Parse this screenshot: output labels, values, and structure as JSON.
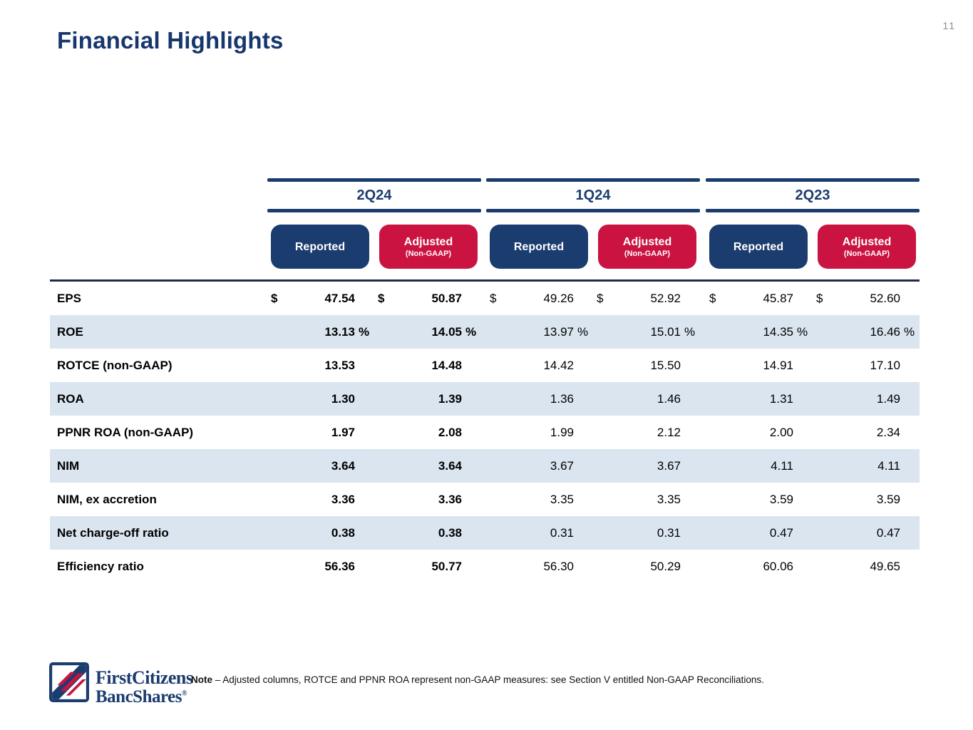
{
  "page": {
    "title": "Financial Highlights",
    "number": "11"
  },
  "colors": {
    "navy": "#1B3C6E",
    "red": "#CA1341",
    "stripe": "#DBE5F0",
    "table_rule": "#1F2A44",
    "title_navy": "#17366D"
  },
  "table": {
    "groups": [
      {
        "label": "2Q24",
        "columns": [
          {
            "label": "Reported",
            "sub": ""
          },
          {
            "label": "Adjusted",
            "sub": "(Non-GAAP)"
          }
        ]
      },
      {
        "label": "1Q24",
        "columns": [
          {
            "label": "Reported",
            "sub": ""
          },
          {
            "label": "Adjusted",
            "sub": "(Non-GAAP)"
          }
        ]
      },
      {
        "label": "2Q23",
        "columns": [
          {
            "label": "Reported",
            "sub": ""
          },
          {
            "label": "Adjusted",
            "sub": "(Non-GAAP)"
          }
        ]
      }
    ],
    "rows": [
      {
        "key": "eps",
        "label": "EPS",
        "dollar": "$",
        "pct": "",
        "values": [
          "47.54",
          "50.87",
          "49.26",
          "52.92",
          "45.87",
          "52.60"
        ]
      },
      {
        "key": "roe",
        "label": "ROE",
        "dollar": "",
        "pct": "%",
        "values": [
          "13.13",
          "14.05",
          "13.97",
          "15.01",
          "14.35",
          "16.46"
        ]
      },
      {
        "key": "rotce-non-gaap",
        "label": "ROTCE (non-GAAP)",
        "dollar": "",
        "pct": "",
        "values": [
          "13.53",
          "14.48",
          "14.42",
          "15.50",
          "14.91",
          "17.10"
        ]
      },
      {
        "key": "roa",
        "label": "ROA",
        "dollar": "",
        "pct": "",
        "values": [
          "1.30",
          "1.39",
          "1.36",
          "1.46",
          "1.31",
          "1.49"
        ]
      },
      {
        "key": "ppnr-roa-non-gaap",
        "label": "PPNR ROA (non-GAAP)",
        "dollar": "",
        "pct": "",
        "values": [
          "1.97",
          "2.08",
          "1.99",
          "2.12",
          "2.00",
          "2.34"
        ]
      },
      {
        "key": "nim",
        "label": "NIM",
        "dollar": "",
        "pct": "",
        "values": [
          "3.64",
          "3.64",
          "3.67",
          "3.67",
          "4.11",
          "4.11"
        ]
      },
      {
        "key": "nim-ex-accretion",
        "label": "NIM, ex accretion",
        "dollar": "",
        "pct": "",
        "values": [
          "3.36",
          "3.36",
          "3.35",
          "3.35",
          "3.59",
          "3.59"
        ]
      },
      {
        "key": "net-charge-off-ratio",
        "label": "Net charge-off ratio",
        "dollar": "",
        "pct": "",
        "values": [
          "0.38",
          "0.38",
          "0.31",
          "0.31",
          "0.47",
          "0.47"
        ]
      },
      {
        "key": "efficiency-ratio",
        "label": "Efficiency ratio",
        "dollar": "",
        "pct": "",
        "values": [
          "56.36",
          "50.77",
          "56.30",
          "50.29",
          "60.06",
          "49.65"
        ]
      }
    ]
  },
  "footer": {
    "logo": {
      "line1": "FirstCitizens",
      "line2": "BancShares",
      "reg": "®"
    },
    "note_label": "Note",
    "note_text": "–  Adjusted columns, ROTCE and PPNR ROA represent non-GAAP measures: see Section V entitled Non-GAAP Reconciliations."
  }
}
